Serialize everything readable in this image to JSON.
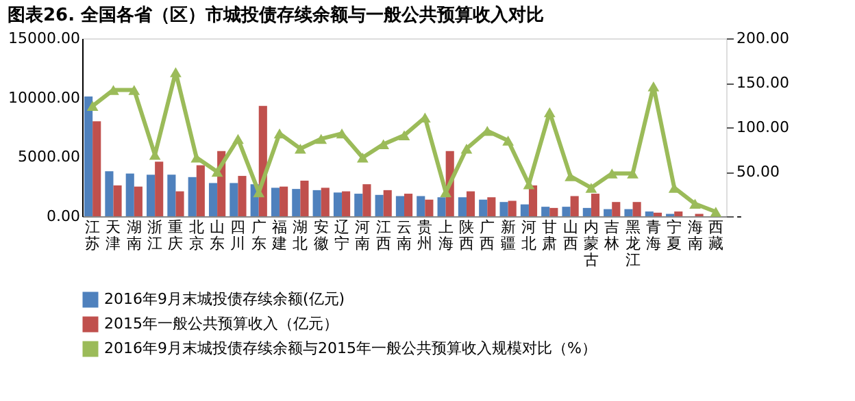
{
  "chart_data": {
    "type": "bar",
    "title": "图表26. 全国各省（区）市城投债存续余额与一般公共预算收入对比",
    "categories": [
      "江苏",
      "天津",
      "湖南",
      "浙江",
      "重庆",
      "北京",
      "山东",
      "四川",
      "广东",
      "福建",
      "湖北",
      "安徽",
      "辽宁",
      "河南",
      "江西",
      "云南",
      "贵州",
      "上海",
      "陕西",
      "广西",
      "新疆",
      "河北",
      "甘肃",
      "山西",
      "内蒙古",
      "吉林",
      "黑龙江",
      "青海",
      "宁夏",
      "海南",
      "西藏"
    ],
    "series": [
      {
        "name": "2016年9月末城投债存续余额(亿元)",
        "color": "#4f81bd",
        "values": [
          10100,
          3800,
          3600,
          3500,
          3500,
          3300,
          2800,
          2800,
          2700,
          2400,
          2300,
          2200,
          2000,
          1900,
          1800,
          1700,
          1700,
          1600,
          1600,
          1400,
          1200,
          1000,
          800,
          800,
          700,
          600,
          600,
          400,
          200,
          null,
          null
        ]
      },
      {
        "name": "2015年一般公共预算收入（亿元）",
        "color": "#c0504d",
        "values": [
          8000,
          2600,
          2500,
          4600,
          2100,
          4300,
          5500,
          3400,
          9300,
          2500,
          3000,
          2400,
          2100,
          2700,
          2200,
          1900,
          1400,
          5500,
          2100,
          1600,
          1300,
          2600,
          700,
          1700,
          1900,
          1200,
          1200,
          300,
          400,
          200,
          null
        ]
      },
      {
        "name": "2016年9月末城投债存续余额与2015年一般公共预算收入规模对比（%）",
        "type": "line",
        "axis": "y2",
        "color": "#9bbb59",
        "marker": "triangle",
        "line_style": "solid",
        "values": [
          124,
          142,
          142,
          69,
          162,
          66,
          50,
          87,
          27,
          93,
          76,
          87,
          93,
          66,
          81,
          91,
          111,
          27,
          76,
          96,
          85,
          36,
          117,
          45,
          32,
          48,
          48,
          146,
          32,
          14,
          5
        ]
      }
    ],
    "ylim": [
      0,
      15000
    ],
    "yticks": [
      {
        "value": 0,
        "label": "0.00"
      },
      {
        "value": 5000,
        "label": "5000.00"
      },
      {
        "value": 10000,
        "label": "10000.00"
      },
      {
        "value": 15000,
        "label": "15000.00"
      }
    ],
    "y2lim": [
      0,
      200
    ],
    "y2ticks": [
      {
        "value": 0,
        "label": "-"
      },
      {
        "value": 50,
        "label": "50.00"
      },
      {
        "value": 100,
        "label": "100.00"
      },
      {
        "value": 150,
        "label": "150.00"
      },
      {
        "value": 200,
        "label": "200.00"
      }
    ],
    "grid": false,
    "legend": "bottom"
  }
}
